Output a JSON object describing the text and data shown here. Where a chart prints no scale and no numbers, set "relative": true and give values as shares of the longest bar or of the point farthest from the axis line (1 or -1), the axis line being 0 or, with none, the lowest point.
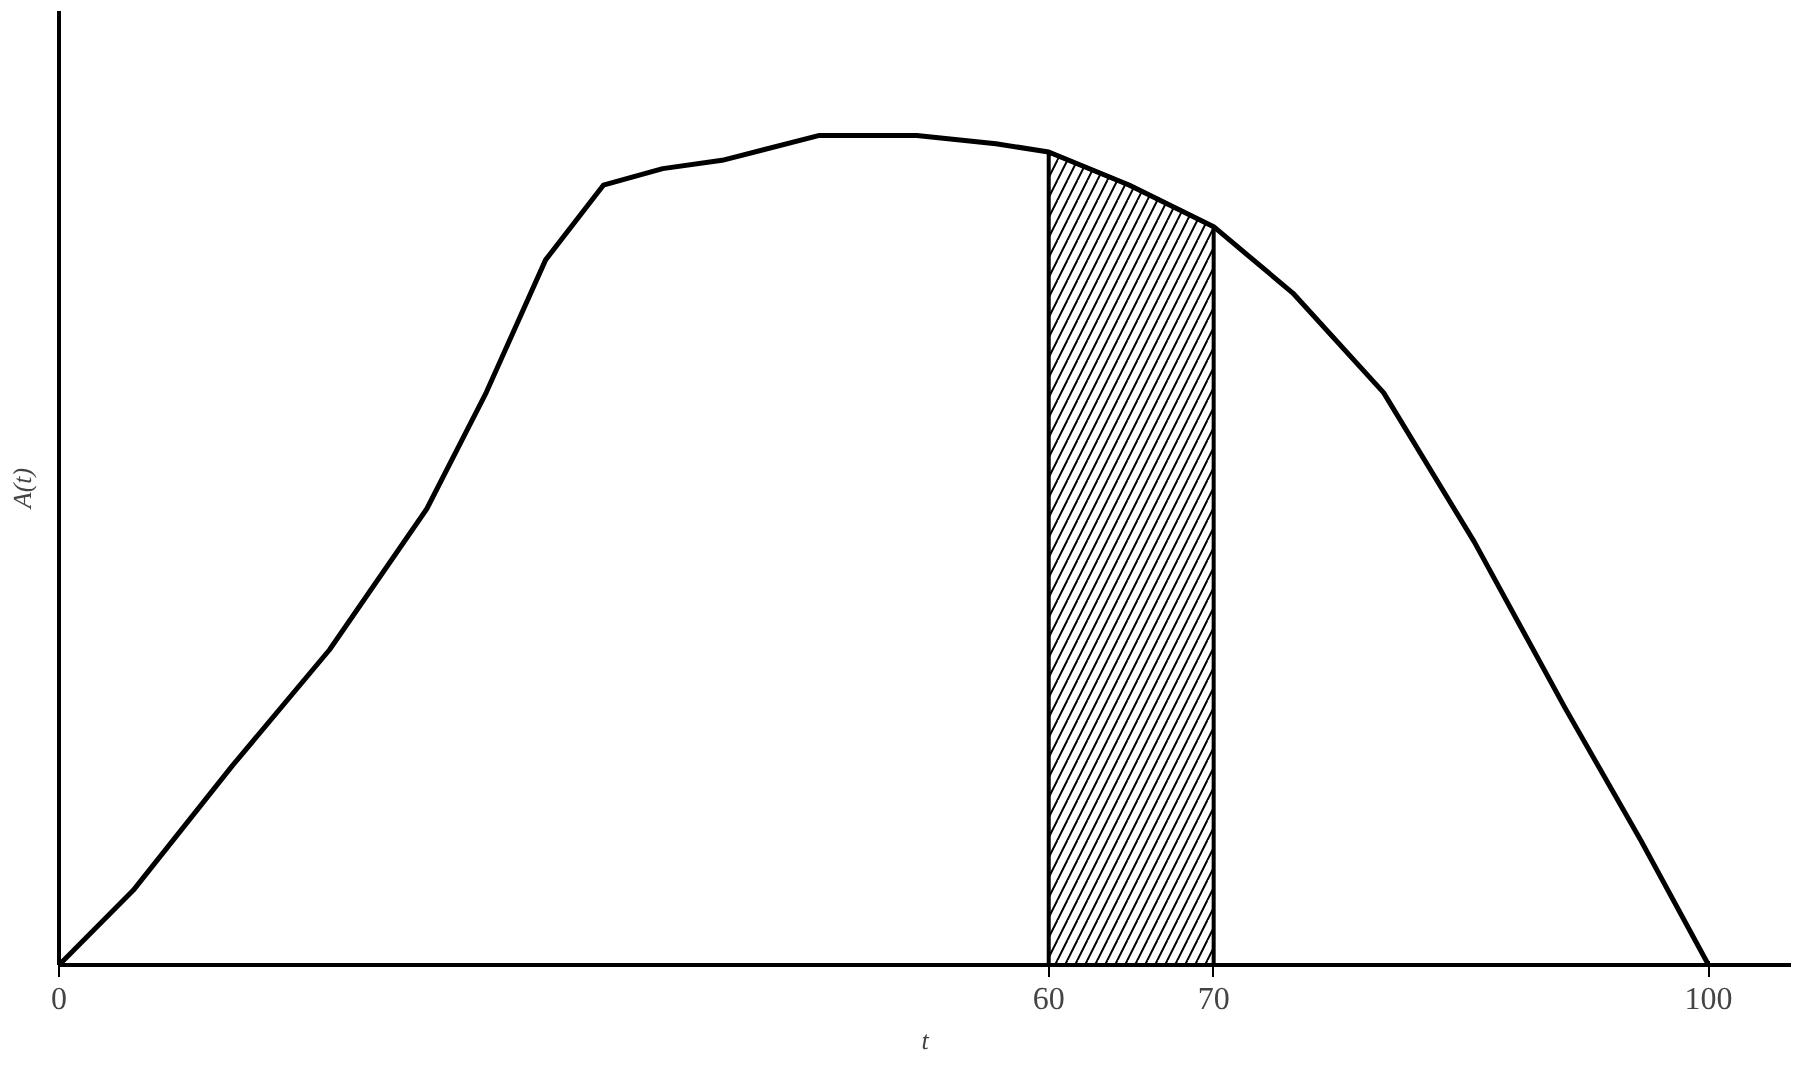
{
  "chart_data": {
    "type": "line",
    "relative": true,
    "xlabel": "t",
    "ylabel": "A(t)",
    "x": [
      0,
      4.5,
      10.5,
      16.4,
      22.3,
      25.9,
      29.5,
      33,
      36.6,
      40.2,
      46.1,
      52,
      56.8,
      60,
      64.9,
      70,
      74.8,
      80.3,
      85.8,
      91.3,
      95.9,
      100
    ],
    "series": [
      {
        "color": "#000000",
        "values": [
          0,
          0.09,
          0.24,
          0.38,
          0.55,
          0.69,
          0.85,
          0.94,
          0.96,
          0.97,
          1.0,
          1.0,
          0.99,
          0.98,
          0.94,
          0.89,
          0.81,
          0.69,
          0.51,
          0.31,
          0.15,
          0
        ]
      }
    ],
    "xlim": [
      0,
      105
    ],
    "xticks": [
      0,
      60,
      70,
      100
    ],
    "bands": [
      {
        "axis": "x",
        "from": 60,
        "to": 70
      }
    ],
    "line_style": "solid"
  }
}
